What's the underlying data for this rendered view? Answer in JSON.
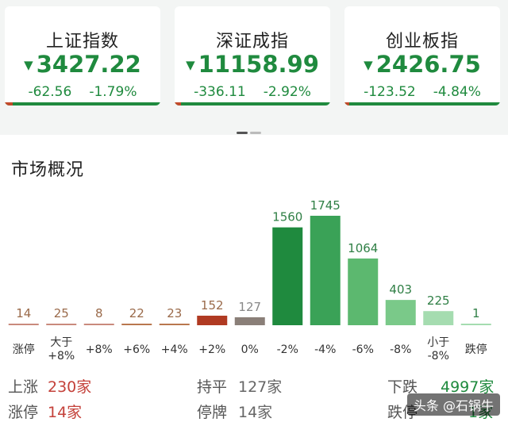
{
  "indices": [
    {
      "name": "上证指数",
      "value": "3427.22",
      "change": "-62.56",
      "pct": "-1.79%"
    },
    {
      "name": "深证成指",
      "value": "11158.99",
      "change": "-336.11",
      "pct": "-2.92%"
    },
    {
      "name": "创业板指",
      "value": "2426.75",
      "change": "-123.52",
      "pct": "-4.84%"
    }
  ],
  "market": {
    "title": "市场概况"
  },
  "chart_data": {
    "type": "bar",
    "categories": [
      "涨停",
      "大于\n+8%",
      "+8%",
      "+6%",
      "+4%",
      "+2%",
      "0%",
      "-2%",
      "-4%",
      "-6%",
      "-8%",
      "小于\n-8%",
      "跌停"
    ],
    "values": [
      14,
      25,
      8,
      22,
      23,
      152,
      127,
      1560,
      1745,
      1064,
      403,
      225,
      1
    ],
    "colors": [
      "#c98a7c",
      "#c98a7c",
      "#c98a7c",
      "#b9774e",
      "#b9774e",
      "#b03a22",
      "#8a7f78",
      "#1f8a3e",
      "#3aa257",
      "#5cb86f",
      "#7ac989",
      "#a5dcb0",
      "#a5dcb0"
    ],
    "label_colors": [
      "#9a6a4a",
      "#9a6a4a",
      "#9a6a4a",
      "#9a6a4a",
      "#9a6a4a",
      "#9a6a4a",
      "#888888",
      "#2f7f45",
      "#2f7f45",
      "#2f7f45",
      "#2f7f45",
      "#2f7f45",
      "#2f7f45"
    ]
  },
  "summary": {
    "up_label": "上涨",
    "up_value": "230家",
    "flat_label": "持平",
    "flat_value": "127家",
    "down_label": "下跌",
    "down_value": "4997家",
    "limit_up_label": "涨停",
    "limit_up_value": "14家",
    "halt_label": "停牌",
    "halt_value": "14家",
    "limit_down_label": "跌停",
    "limit_down_value": "1家"
  },
  "watermark": "头条 @石锅牛",
  "colors": {
    "up": "#c4413a",
    "down": "#1f8a3e"
  }
}
